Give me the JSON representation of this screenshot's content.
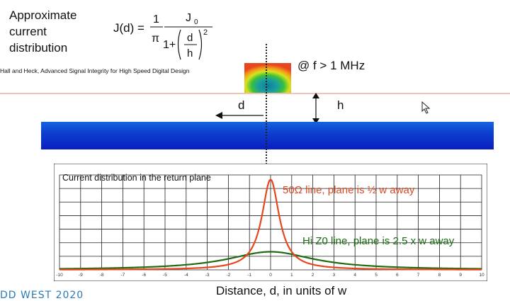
{
  "slide": {
    "title": "Approximate\ncurrent\ndistribution",
    "equation": {
      "lhs": "J(d) =",
      "frac1_num": "1",
      "frac1_den": "π",
      "frac2_num": "J",
      "frac2_num_sub": "0",
      "frac2_den_prefix": "1+",
      "inner_num": "d",
      "inner_den": "h",
      "power": "2"
    },
    "citation": "Hall and Heck, Advanced Signal Integrity for High Speed Digital Design",
    "freq_label": "@ f > 1 MHz",
    "h_label": "h",
    "d_label": "d",
    "footer": "DD WEST 2020",
    "x_axis_title": "Distance, d, in units of w",
    "colors": {
      "red_curve": "#e8461f",
      "green_curve": "#1f6b12",
      "red_text": "#d84a23",
      "green_text": "#1a6b12"
    }
  },
  "chart_data": {
    "type": "line",
    "title": "Current distribution in the return plane",
    "xlabel": "Distance, d, in units of w",
    "ylabel": "",
    "xlim": [
      -10,
      10
    ],
    "ylim": [
      0,
      1.05
    ],
    "grid": true,
    "x_ticks": [
      "-10",
      "-9",
      "-8",
      "-7",
      "-6",
      "-5",
      "-4",
      "-3",
      "-2",
      "-1",
      "0",
      "1",
      "2",
      "3",
      "4",
      "5",
      "6",
      "7",
      "8",
      "9",
      "10"
    ],
    "series": [
      {
        "name": "50Ω line, plane is ½ w away",
        "formula": "lorentzian",
        "h": 0.5,
        "peak": 1.0
      },
      {
        "name": "Hi Z0 line, plane is 2.5 x w away",
        "formula": "lorentzian",
        "h": 2.5,
        "peak": 0.2
      }
    ]
  }
}
